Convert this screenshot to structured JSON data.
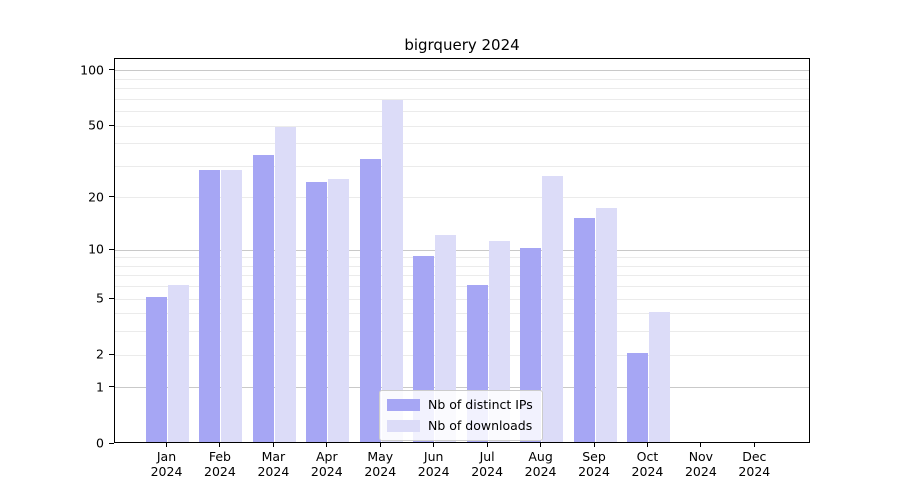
{
  "chart_data": {
    "type": "bar",
    "title": "bigrquery 2024",
    "x_categories": [
      {
        "month": "Jan",
        "year": "2024"
      },
      {
        "month": "Feb",
        "year": "2024"
      },
      {
        "month": "Mar",
        "year": "2024"
      },
      {
        "month": "Apr",
        "year": "2024"
      },
      {
        "month": "May",
        "year": "2024"
      },
      {
        "month": "Jun",
        "year": "2024"
      },
      {
        "month": "Jul",
        "year": "2024"
      },
      {
        "month": "Aug",
        "year": "2024"
      },
      {
        "month": "Sep",
        "year": "2024"
      },
      {
        "month": "Oct",
        "year": "2024"
      },
      {
        "month": "Nov",
        "year": "2024"
      },
      {
        "month": "Dec",
        "year": "2024"
      }
    ],
    "series": [
      {
        "key": "distinct-ips",
        "name": "Nb of distinct IPs",
        "color": "#a6a6f4",
        "values": [
          5,
          28,
          34,
          24,
          32,
          9,
          6,
          10,
          15,
          2,
          0,
          0
        ]
      },
      {
        "key": "downloads",
        "name": "Nb of downloads",
        "color": "#dcdcf8",
        "values": [
          6,
          28,
          48,
          25,
          68,
          12,
          11,
          26,
          17,
          4,
          0,
          0
        ]
      }
    ],
    "y_axis": {
      "scale": "log1p",
      "tick_values": [
        0,
        1,
        2,
        5,
        10,
        20,
        50,
        100
      ],
      "ylim": [
        0,
        116
      ],
      "major_grid": [
        1,
        10,
        100
      ],
      "minor_grid": [
        2,
        3,
        4,
        5,
        6,
        7,
        8,
        9,
        20,
        30,
        40,
        50,
        60,
        70,
        80,
        90
      ]
    },
    "legend_position": "lower center",
    "grid": true,
    "colors": {
      "major_grid": "#c9c9c9",
      "minor_grid": "#ebebeb",
      "axis": "#000000",
      "text": "#000000",
      "background": "#ffffff"
    }
  }
}
